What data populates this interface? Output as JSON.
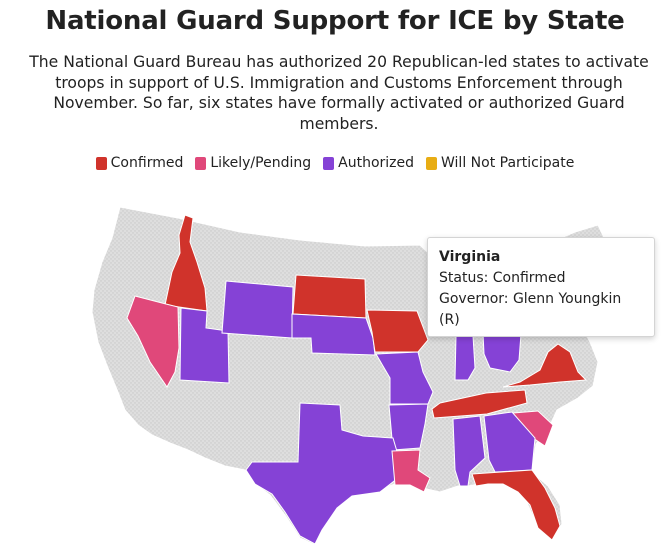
{
  "header": {
    "title": "National Guard Support for ICE by State",
    "subtitle": "The National Guard Bureau has authorized 20 Republican-led states to activate troops in support of U.S. Immigration and Customs Enforcement through November. So far, six states have formally activated or authorized Guard members."
  },
  "legend": [
    {
      "label": "Confirmed",
      "color": "#d0332b"
    },
    {
      "label": "Likely/Pending",
      "color": "#e0487a"
    },
    {
      "label": "Authorized",
      "color": "#8542d6"
    },
    {
      "label": "Will Not Participate",
      "color": "#e8ad14"
    }
  ],
  "map": {
    "base_color": "#dcdcdc",
    "highlighted_state": "Virginia",
    "states": [
      {
        "name": "Idaho",
        "status": "Confirmed"
      },
      {
        "name": "Nevada",
        "status": "Likely/Pending"
      },
      {
        "name": "Utah",
        "status": "Authorized"
      },
      {
        "name": "Wyoming",
        "status": "Authorized"
      },
      {
        "name": "South Dakota",
        "status": "Confirmed"
      },
      {
        "name": "Nebraska",
        "status": "Authorized"
      },
      {
        "name": "Iowa",
        "status": "Confirmed"
      },
      {
        "name": "Missouri",
        "status": "Authorized"
      },
      {
        "name": "Arkansas",
        "status": "Authorized"
      },
      {
        "name": "Texas",
        "status": "Authorized"
      },
      {
        "name": "Louisiana",
        "status": "Likely/Pending"
      },
      {
        "name": "Indiana",
        "status": "Authorized"
      },
      {
        "name": "Ohio",
        "status": "Authorized"
      },
      {
        "name": "Tennessee",
        "status": "Confirmed"
      },
      {
        "name": "Virginia",
        "status": "Confirmed"
      },
      {
        "name": "South Carolina",
        "status": "Likely/Pending"
      },
      {
        "name": "Alabama",
        "status": "Authorized"
      },
      {
        "name": "Georgia",
        "status": "Authorized"
      },
      {
        "name": "Florida",
        "status": "Confirmed"
      }
    ]
  },
  "tooltip": {
    "state": "Virginia",
    "status_line": "Status: Confirmed",
    "governor_line": "Governor: Glenn Youngkin",
    "party_line": "(R)"
  }
}
